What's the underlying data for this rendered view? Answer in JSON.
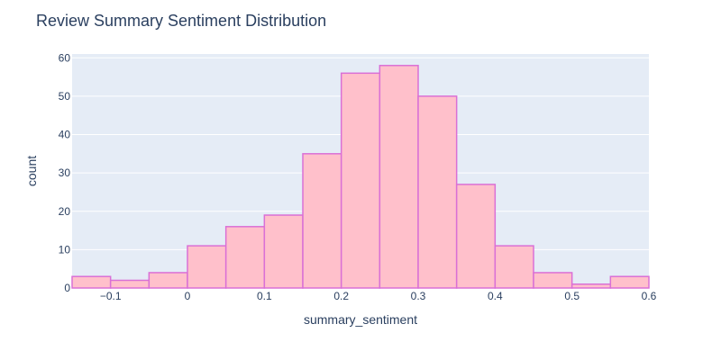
{
  "chart_data": {
    "type": "bar",
    "title": "Review Summary Sentiment Distribution",
    "xlabel": "summary_sentiment",
    "ylabel": "count",
    "bin_width": 0.05,
    "bins": [
      {
        "start": -0.15,
        "end": -0.1,
        "count": 3
      },
      {
        "start": -0.1,
        "end": -0.05,
        "count": 2
      },
      {
        "start": -0.05,
        "end": 0.0,
        "count": 4
      },
      {
        "start": 0.0,
        "end": 0.05,
        "count": 11
      },
      {
        "start": 0.05,
        "end": 0.1,
        "count": 16
      },
      {
        "start": 0.1,
        "end": 0.15,
        "count": 19
      },
      {
        "start": 0.15,
        "end": 0.2,
        "count": 35
      },
      {
        "start": 0.2,
        "end": 0.25,
        "count": 56
      },
      {
        "start": 0.25,
        "end": 0.3,
        "count": 58
      },
      {
        "start": 0.3,
        "end": 0.35,
        "count": 50
      },
      {
        "start": 0.35,
        "end": 0.4,
        "count": 27
      },
      {
        "start": 0.4,
        "end": 0.45,
        "count": 11
      },
      {
        "start": 0.45,
        "end": 0.5,
        "count": 4
      },
      {
        "start": 0.5,
        "end": 0.55,
        "count": 1
      },
      {
        "start": 0.55,
        "end": 0.6,
        "count": 3
      }
    ],
    "xlim": [
      -0.15,
      0.6
    ],
    "ylim": [
      0,
      61
    ],
    "x_ticks": [
      -0.1,
      0,
      0.1,
      0.2,
      0.3,
      0.4,
      0.5,
      0.6
    ],
    "x_tick_labels": [
      "−0.1",
      "0",
      "0.1",
      "0.2",
      "0.3",
      "0.4",
      "0.5",
      "0.6"
    ],
    "y_ticks": [
      0,
      10,
      20,
      30,
      40,
      50,
      60
    ],
    "y_tick_labels": [
      "0",
      "10",
      "20",
      "30",
      "40",
      "50",
      "60"
    ],
    "grid": true,
    "colors": {
      "bar_fill": "#ffc0cb",
      "bar_stroke": "#da70d6",
      "plot_bg": "#e5ecf6",
      "grid": "#ffffff",
      "text": "#2a3f5f"
    }
  }
}
